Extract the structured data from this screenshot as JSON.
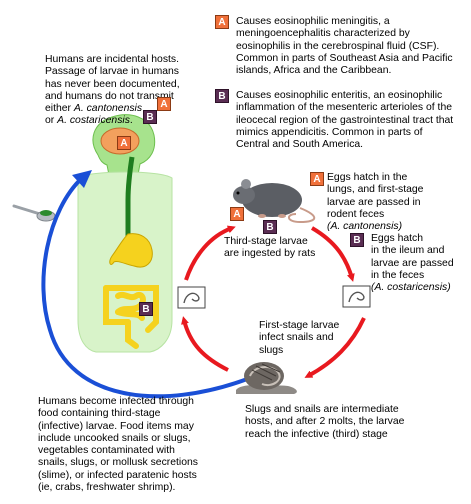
{
  "legend": {
    "a_label": "A",
    "a_text": "Causes eosinophilic meningitis, a meningoencephalitis characterized by eosinophilis in the cerebrospinal fluid (CSF). Common in parts of Southeast Asia and Pacific islands, Africa and the Caribbean.",
    "b_label": "B",
    "b_text": "Causes eosinophilic enteritis, an eosinophilic inflammation of the mesenteric arterioles of the ileocecal region of the gastrointestinal tract that mimics appendicitis. Common in parts of Central and South America."
  },
  "humans_note": {
    "line1": "Humans are incidental hosts.",
    "line2": "Passage of larvae in humans",
    "line3": "has never been documented,",
    "line4": "and humans do not transmit",
    "line5_prefix": "either ",
    "species_a": "A. cantonensis",
    "line6_prefix": "or ",
    "species_b": "A. costaricensis",
    "line6_suffix": "."
  },
  "rat_a": {
    "text1": "Eggs hatch in the",
    "text2": "lungs, and first-stage",
    "text3": "larvae are passed in",
    "text4": "rodent feces",
    "species": "(A. cantonensis)"
  },
  "rat_b": {
    "text1": "Eggs hatch",
    "text2": "in the ileum and",
    "text3": "larvae are passed",
    "text4": "in the feces",
    "species": "(A. costaricensis)"
  },
  "third_stage_rats": {
    "line1": "Third-stage larvae",
    "line2": "are ingested by rats"
  },
  "first_stage_snails": {
    "line1": "First-stage larvae",
    "line2": "infect snails and",
    "line3": "slugs"
  },
  "slugs_note": {
    "line1": "Slugs and snails are intermediate",
    "line2": "hosts, and after 2 molts, the larvae",
    "line3": "reach the infective (third) stage"
  },
  "humans_infected": {
    "line1": "Humans become infected through",
    "line2": "food containing third-stage",
    "line3": "(infective) larvae. Food items may",
    "line4": "include uncooked snails or slugs,",
    "line5": "vegetables contaminated with",
    "line6": "snails, slugs, or mollusk secretions",
    "line7": "(slime), or infected paratenic hosts",
    "line8": "(ie, crabs, freshwater shrimp)."
  },
  "colors": {
    "badge_a": "#f0703a",
    "badge_b": "#5a2d53",
    "arrow_red": "#e8191f",
    "arrow_blue": "#1a4fd6",
    "human_green": "#a7e38d",
    "gut_yellow": "#f5d21e",
    "esophagus": "#1e7d1e"
  }
}
